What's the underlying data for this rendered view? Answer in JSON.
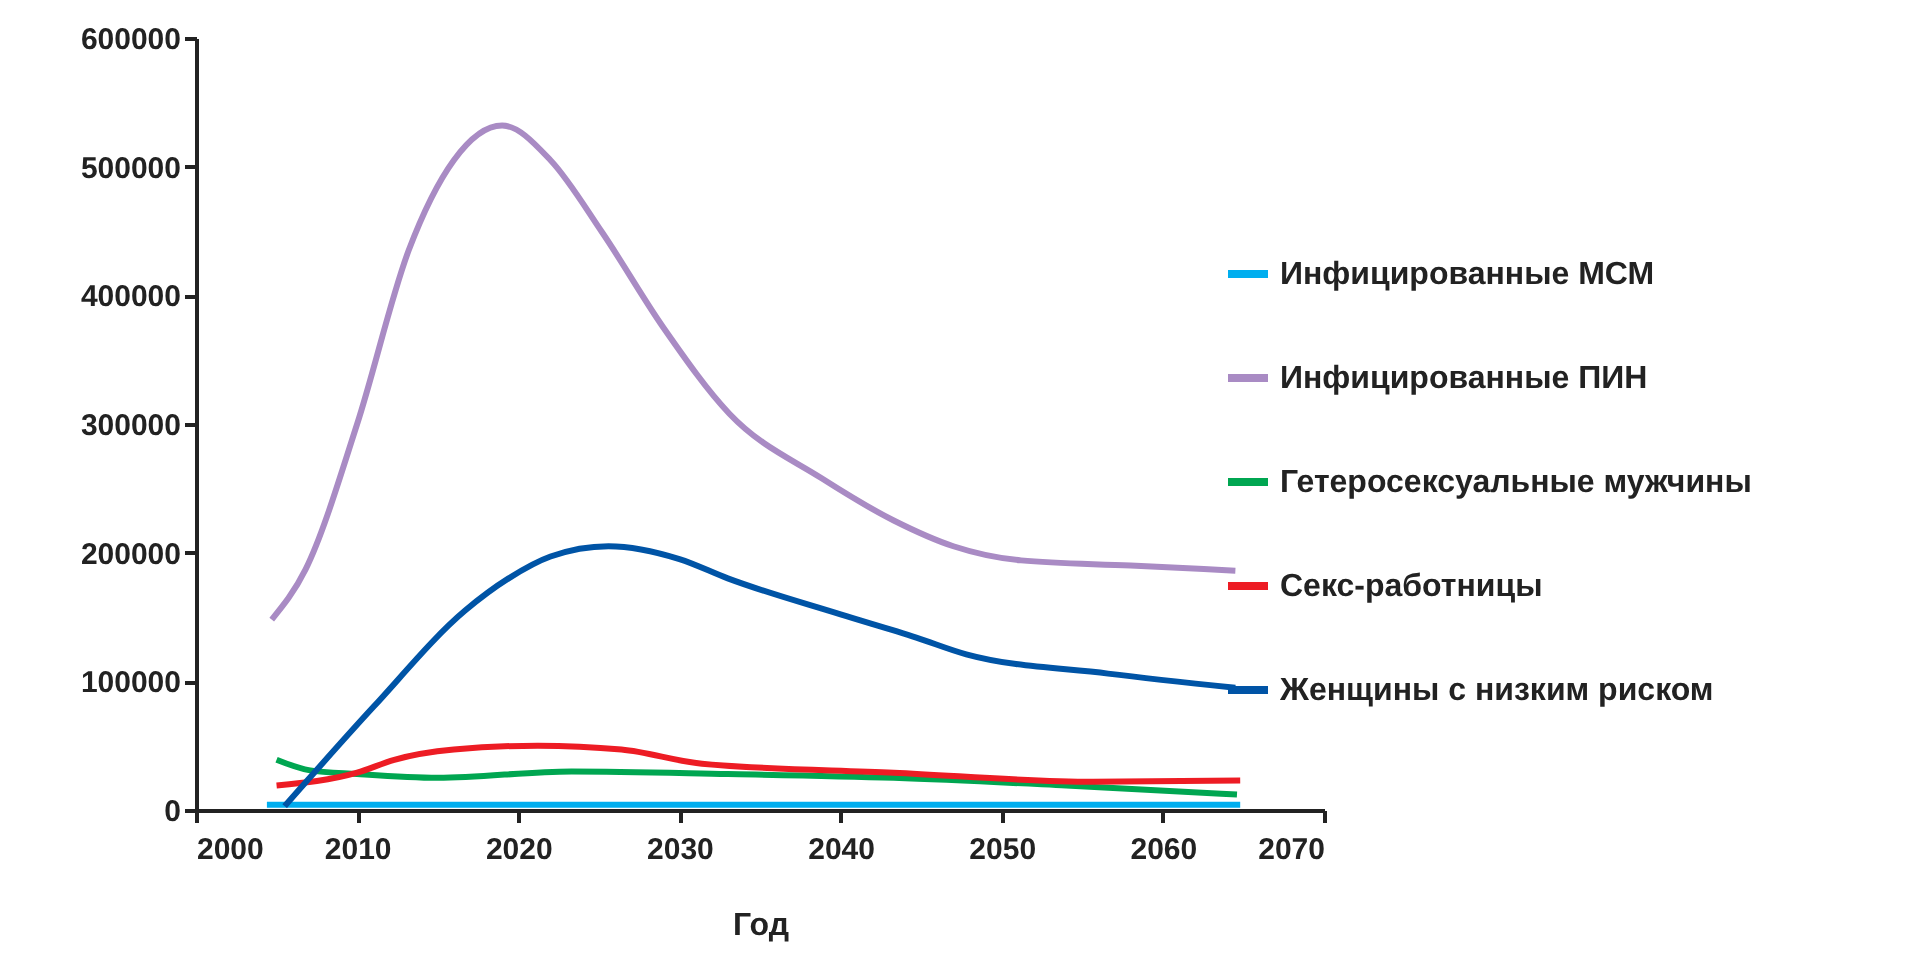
{
  "chart_data": {
    "type": "line",
    "xlabel": "Год",
    "xlim": [
      2000,
      2070
    ],
    "xticks": [
      2000,
      2010,
      2020,
      2030,
      2040,
      2050,
      2060,
      2070
    ],
    "ylim": [
      0,
      600000
    ],
    "yticks": [
      0,
      100000,
      200000,
      300000,
      400000,
      500000,
      600000
    ],
    "grid": false,
    "legend": "right",
    "marker": "none",
    "line_style": "solid",
    "series": [
      {
        "name": "Инфицированные МСМ",
        "color": "#00aeef",
        "x": [
          2004.4,
          2015,
          2030,
          2045,
          2064.8
        ],
        "values": [
          4000,
          4000,
          4000,
          4000,
          4000
        ]
      },
      {
        "name": "Инфицированные ПИН",
        "color": "#a98bc4",
        "x": [
          2004.7,
          2006.8,
          2010,
          2013.2,
          2016,
          2019,
          2022,
          2025.2,
          2029,
          2033.1,
          2038.8,
          2043.3,
          2047,
          2051.2,
          2058,
          2064.5
        ],
        "values": [
          148000,
          187000,
          300000,
          435000,
          505000,
          532000,
          505000,
          449000,
          375000,
          308000,
          258000,
          225000,
          205000,
          194000,
          190000,
          186000
        ]
      },
      {
        "name": "Гетеросексуальные мужчины",
        "color": "#00a651",
        "x": [
          2005,
          2007,
          2010,
          2015,
          2023.3,
          2033,
          2043.3,
          2054,
          2064.6
        ],
        "values": [
          39000,
          31000,
          28000,
          25000,
          30000,
          28000,
          25000,
          19000,
          12000
        ]
      },
      {
        "name": "Секс-работницы",
        "color": "#ed1c24",
        "x": [
          2005,
          2010,
          2012.3,
          2016,
          2021.2,
          2026.4,
          2031.4,
          2043.3,
          2055.7,
          2064.8
        ],
        "values": [
          19000,
          29000,
          39000,
          47000,
          50000,
          47000,
          36000,
          29000,
          22000,
          23000
        ]
      },
      {
        "name": "Женщины с низким риском",
        "color": "#0054a6",
        "x": [
          2005.5,
          2011,
          2016.7,
          2019.4,
          2022,
          2025.6,
          2030,
          2033,
          2040,
          2044.7,
          2047.8,
          2056.6,
          2064.5
        ],
        "values": [
          3000,
          80000,
          155000,
          180000,
          197000,
          205000,
          195000,
          180000,
          152000,
          134000,
          121000,
          106000,
          95000
        ]
      }
    ]
  }
}
